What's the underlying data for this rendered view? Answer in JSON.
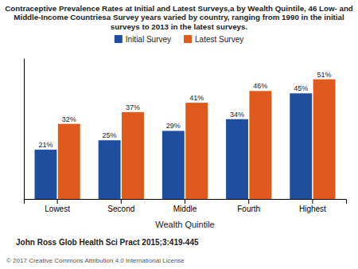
{
  "chart_data": {
    "type": "bar",
    "title": "Contraceptive Prevalence Rates at Initial and Latest Surveys,a by Wealth Quintile, 46 Low- and\nMiddle-Income Countriesa Survey years varied by country, ranging from 1990 in the initial\nsurveys to 2013 in the latest surveys.",
    "xlabel": "Wealth Quintile",
    "categories": [
      "Lowest",
      "Second",
      "Middle",
      "Fourth",
      "Highest"
    ],
    "series": [
      {
        "name": "Initial Survey",
        "color": "#1f4e9f",
        "values": [
          21,
          25,
          29,
          34,
          45
        ],
        "value_labels": [
          "21%",
          "25%",
          "29%",
          "34%",
          "45%"
        ]
      },
      {
        "name": "Latest Survey",
        "color": "#e05a1e",
        "values": [
          32,
          37,
          41,
          46,
          51
        ],
        "value_labels": [
          "32%",
          "37%",
          "41%",
          "46%",
          "51%"
        ]
      }
    ],
    "ylim": [
      0,
      60
    ],
    "tick_labels": "x",
    "data_labels": true,
    "legend": "top",
    "grid": false,
    "annotations": [
      "John Ross Glob Health Sci Pract 2015;3:419-445",
      "© 2017 Creative Commons Attribution 4.0 International License"
    ]
  }
}
